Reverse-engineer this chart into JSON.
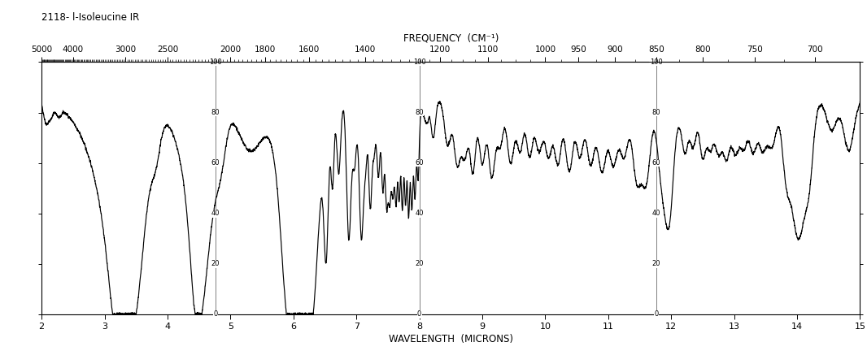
{
  "title": "2118- l-Isoleucine IR",
  "xlabel": "WAVELENGTH  (MICRONS)",
  "top_label": "FREQUENCY  (CM⁻¹)",
  "background_color": "#ffffff",
  "line_color": "#000000",
  "wavelength_min": 2,
  "wavelength_max": 15,
  "transmittance_min": 0,
  "transmittance_max": 100,
  "top_freq_ticks": [
    5000,
    4000,
    3000,
    2500,
    2000,
    1800,
    1600,
    1400,
    1200,
    1100,
    1000,
    950,
    900,
    850,
    800,
    750,
    700
  ],
  "bottom_wave_ticks": [
    2,
    3,
    4,
    5,
    6,
    7,
    8,
    9,
    10,
    11,
    12,
    13,
    14,
    15
  ],
  "ytick_positions": [
    0,
    20,
    40,
    60,
    80,
    100
  ],
  "segment_boundaries": [
    4.76,
    8.0,
    11.76
  ]
}
